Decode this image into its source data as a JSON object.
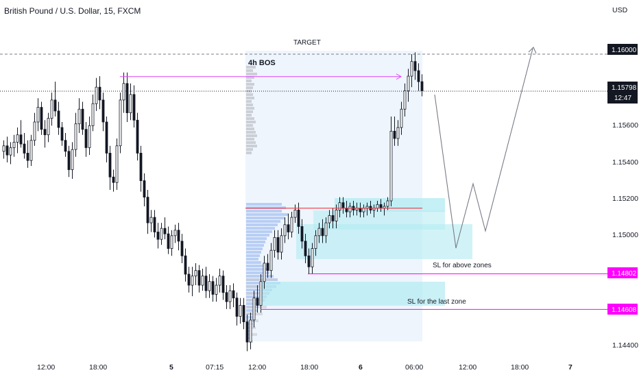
{
  "header": {
    "symbol_title": "British Pound / U.S. Dollar, 15, FXCM",
    "currency": "USD"
  },
  "price_axis": {
    "labels": [
      "1.16000",
      "1.15600",
      "1.15400",
      "1.15200",
      "1.15000",
      "1.14400"
    ],
    "current_price": "1.15798",
    "countdown": "12:47",
    "sl_levels": [
      "1.14802",
      "1.14608"
    ]
  },
  "time_axis": {
    "labels": [
      "12:00",
      "18:00",
      "5",
      "07:15",
      "12:00",
      "18:00",
      "6",
      "06:00",
      "12:00",
      "18:00",
      "7"
    ],
    "bold_labels": [
      "5",
      "6",
      "7"
    ]
  },
  "annotations": {
    "target": "TARGET",
    "bos": "4h BOS",
    "sl_above": "SL for above zones",
    "sl_last": "SL for the last zone"
  },
  "colors": {
    "up_candle": "#131722",
    "down_candle": "#131722",
    "bos_arrow": "#e040fb",
    "sl_line": "#ff00ff",
    "zone_fill": "#b2ebf2",
    "range_fill": "#e8f1fb",
    "poc_line": "#f23645",
    "volume_profile": "#aec7f2",
    "projection": "#787b86",
    "badge_bg": "#131722"
  },
  "chart_data": {
    "type": "candlestick",
    "instrument": "British Pound / U.S. Dollar",
    "timeframe": "15",
    "source": "FXCM",
    "ylim": [
      1.1434,
      1.1618
    ],
    "y_ticks": [
      1.16,
      1.156,
      1.154,
      1.152,
      1.15,
      1.144
    ],
    "last_price": 1.15798,
    "ohlc": [
      [
        1.1547,
        1.1553,
        1.1543,
        1.155
      ],
      [
        1.155,
        1.1555,
        1.1541,
        1.1545
      ],
      [
        1.1545,
        1.1552,
        1.154,
        1.1549
      ],
      [
        1.1549,
        1.1556,
        1.1544,
        1.1552
      ],
      [
        1.1552,
        1.156,
        1.1546,
        1.1556
      ],
      [
        1.1556,
        1.1564,
        1.1549,
        1.1551
      ],
      [
        1.1551,
        1.1557,
        1.1543,
        1.1546
      ],
      [
        1.1546,
        1.1553,
        1.1538,
        1.1542
      ],
      [
        1.1542,
        1.1556,
        1.1539,
        1.1553
      ],
      [
        1.1553,
        1.1568,
        1.155,
        1.1563
      ],
      [
        1.1563,
        1.1576,
        1.1558,
        1.1571
      ],
      [
        1.1571,
        1.1574,
        1.1556,
        1.1559
      ],
      [
        1.1559,
        1.1564,
        1.1549,
        1.1556
      ],
      [
        1.1556,
        1.1568,
        1.1552,
        1.1565
      ],
      [
        1.1565,
        1.1579,
        1.1561,
        1.1575
      ],
      [
        1.1575,
        1.1585,
        1.1566,
        1.1569
      ],
      [
        1.1569,
        1.1574,
        1.1556,
        1.156
      ],
      [
        1.156,
        1.1563,
        1.155,
        1.1553
      ],
      [
        1.1553,
        1.1557,
        1.1544,
        1.1547
      ],
      [
        1.1547,
        1.155,
        1.1533,
        1.1537
      ],
      [
        1.1537,
        1.1552,
        1.1532,
        1.1548
      ],
      [
        1.1548,
        1.1568,
        1.1544,
        1.1562
      ],
      [
        1.1562,
        1.1576,
        1.1557,
        1.157
      ],
      [
        1.157,
        1.1574,
        1.1556,
        1.1559
      ],
      [
        1.1559,
        1.1563,
        1.1544,
        1.1549
      ],
      [
        1.1549,
        1.1566,
        1.1545,
        1.1561
      ],
      [
        1.1561,
        1.1578,
        1.1558,
        1.1573
      ],
      [
        1.1573,
        1.1587,
        1.1569,
        1.1582
      ],
      [
        1.1582,
        1.1588,
        1.157,
        1.1575
      ],
      [
        1.1575,
        1.1579,
        1.1558,
        1.1563
      ],
      [
        1.1563,
        1.1566,
        1.1541,
        1.1546
      ],
      [
        1.1546,
        1.155,
        1.1526,
        1.1533
      ],
      [
        1.1533,
        1.1537,
        1.1525,
        1.153
      ],
      [
        1.153,
        1.1554,
        1.1526,
        1.155
      ],
      [
        1.155,
        1.1579,
        1.1546,
        1.1575
      ],
      [
        1.1575,
        1.159,
        1.1568,
        1.1584
      ],
      [
        1.1584,
        1.159,
        1.1563,
        1.1568
      ],
      [
        1.1568,
        1.1584,
        1.1564,
        1.1578
      ],
      [
        1.1578,
        1.1583,
        1.156,
        1.1564
      ],
      [
        1.1564,
        1.1568,
        1.1542,
        1.1546
      ],
      [
        1.1546,
        1.155,
        1.1525,
        1.1531
      ],
      [
        1.1531,
        1.1535,
        1.1517,
        1.1522
      ],
      [
        1.1522,
        1.1526,
        1.1502,
        1.1508
      ],
      [
        1.1508,
        1.1515,
        1.1503,
        1.1511
      ],
      [
        1.1511,
        1.1515,
        1.15,
        1.1503
      ],
      [
        1.1503,
        1.1508,
        1.1494,
        1.1499
      ],
      [
        1.1499,
        1.1508,
        1.1496,
        1.1505
      ],
      [
        1.1505,
        1.1511,
        1.1499,
        1.1502
      ],
      [
        1.1502,
        1.1506,
        1.1491,
        1.1494
      ],
      [
        1.1494,
        1.1504,
        1.149,
        1.1501
      ],
      [
        1.1501,
        1.1507,
        1.1497,
        1.1504
      ],
      [
        1.1504,
        1.1508,
        1.1493,
        1.1498
      ],
      [
        1.1498,
        1.1502,
        1.1486,
        1.149
      ],
      [
        1.149,
        1.1494,
        1.1476,
        1.148
      ],
      [
        1.148,
        1.1484,
        1.147,
        1.1474
      ],
      [
        1.1474,
        1.1484,
        1.1468,
        1.1479
      ],
      [
        1.1479,
        1.1486,
        1.1474,
        1.1482
      ],
      [
        1.1482,
        1.1485,
        1.147,
        1.1474
      ],
      [
        1.1474,
        1.1483,
        1.1471,
        1.1479
      ],
      [
        1.1479,
        1.1484,
        1.1467,
        1.1471
      ],
      [
        1.1471,
        1.148,
        1.1467,
        1.1476
      ],
      [
        1.1476,
        1.1479,
        1.1465,
        1.1469
      ],
      [
        1.1469,
        1.1478,
        1.1465,
        1.1474
      ],
      [
        1.1474,
        1.1483,
        1.147,
        1.1479
      ],
      [
        1.1479,
        1.1482,
        1.1466,
        1.147
      ],
      [
        1.147,
        1.1474,
        1.1461,
        1.1465
      ],
      [
        1.1465,
        1.1474,
        1.1461,
        1.1471
      ],
      [
        1.1471,
        1.1475,
        1.1462,
        1.1467
      ],
      [
        1.1467,
        1.147,
        1.1452,
        1.1457
      ],
      [
        1.1457,
        1.1467,
        1.1453,
        1.1463
      ],
      [
        1.1463,
        1.1467,
        1.145,
        1.1454
      ],
      [
        1.1454,
        1.1458,
        1.1438,
        1.1443
      ],
      [
        1.1443,
        1.1459,
        1.1439,
        1.1455
      ],
      [
        1.1455,
        1.1471,
        1.1451,
        1.1467
      ],
      [
        1.1467,
        1.1474,
        1.1459,
        1.1463
      ],
      [
        1.1463,
        1.148,
        1.1459,
        1.1476
      ],
      [
        1.1476,
        1.149,
        1.1472,
        1.1486
      ],
      [
        1.1486,
        1.1491,
        1.1478,
        1.1482
      ],
      [
        1.1482,
        1.1497,
        1.1478,
        1.1493
      ],
      [
        1.1493,
        1.1504,
        1.1489,
        1.15
      ],
      [
        1.15,
        1.1504,
        1.1488,
        1.1492
      ],
      [
        1.1492,
        1.1505,
        1.1488,
        1.1501
      ],
      [
        1.1501,
        1.1511,
        1.1497,
        1.1507
      ],
      [
        1.1507,
        1.1513,
        1.1499,
        1.1503
      ],
      [
        1.1503,
        1.1514,
        1.15,
        1.1511
      ],
      [
        1.1511,
        1.1518,
        1.1508,
        1.1515
      ],
      [
        1.1515,
        1.1519,
        1.1502,
        1.1506
      ],
      [
        1.1506,
        1.151,
        1.1494,
        1.1498
      ],
      [
        1.1498,
        1.1502,
        1.1486,
        1.149
      ],
      [
        1.149,
        1.1494,
        1.148,
        1.1484
      ],
      [
        1.1484,
        1.1497,
        1.148,
        1.1494
      ],
      [
        1.1494,
        1.1504,
        1.149,
        1.1501
      ],
      [
        1.1501,
        1.1508,
        1.1497,
        1.1505
      ],
      [
        1.1505,
        1.151,
        1.1497,
        1.1501
      ],
      [
        1.1501,
        1.1511,
        1.1497,
        1.1508
      ],
      [
        1.1508,
        1.1515,
        1.1505,
        1.1512
      ],
      [
        1.1512,
        1.1516,
        1.1505,
        1.1509
      ],
      [
        1.1509,
        1.1518,
        1.1505,
        1.1515
      ],
      [
        1.1515,
        1.1522,
        1.1511,
        1.1519
      ],
      [
        1.1519,
        1.1522,
        1.1513,
        1.1516
      ],
      [
        1.1516,
        1.152,
        1.1511,
        1.1514
      ],
      [
        1.1514,
        1.1519,
        1.1511,
        1.1517
      ],
      [
        1.1517,
        1.152,
        1.1512,
        1.1515
      ],
      [
        1.1515,
        1.1519,
        1.1512,
        1.1516
      ],
      [
        1.1516,
        1.1519,
        1.1511,
        1.1514
      ],
      [
        1.1514,
        1.1518,
        1.1511,
        1.1516
      ],
      [
        1.1516,
        1.1519,
        1.1512,
        1.1517
      ],
      [
        1.1517,
        1.152,
        1.1513,
        1.1515
      ],
      [
        1.1515,
        1.1518,
        1.1511,
        1.1516
      ],
      [
        1.1516,
        1.152,
        1.1514,
        1.1518
      ],
      [
        1.1518,
        1.1521,
        1.1514,
        1.1516
      ],
      [
        1.1516,
        1.1519,
        1.1512,
        1.1517
      ],
      [
        1.1517,
        1.1522,
        1.1515,
        1.152
      ],
      [
        1.152,
        1.1566,
        1.1517,
        1.1558
      ],
      [
        1.1558,
        1.1566,
        1.155,
        1.1554
      ],
      [
        1.1554,
        1.1564,
        1.155,
        1.156
      ],
      [
        1.156,
        1.1574,
        1.1556,
        1.157
      ],
      [
        1.157,
        1.1584,
        1.1566,
        1.158
      ],
      [
        1.158,
        1.1592,
        1.1574,
        1.1588
      ],
      [
        1.1588,
        1.16,
        1.1582,
        1.1596
      ],
      [
        1.1596,
        1.1601,
        1.1586,
        1.1591
      ],
      [
        1.1591,
        1.1595,
        1.158,
        1.1585
      ],
      [
        1.1585,
        1.1589,
        1.1577,
        1.158
      ]
    ],
    "markings": {
      "target_level": 1.16,
      "bos_level": 1.159,
      "sl_above_zones": 1.14802,
      "sl_last_zone": 1.14608
    }
  }
}
